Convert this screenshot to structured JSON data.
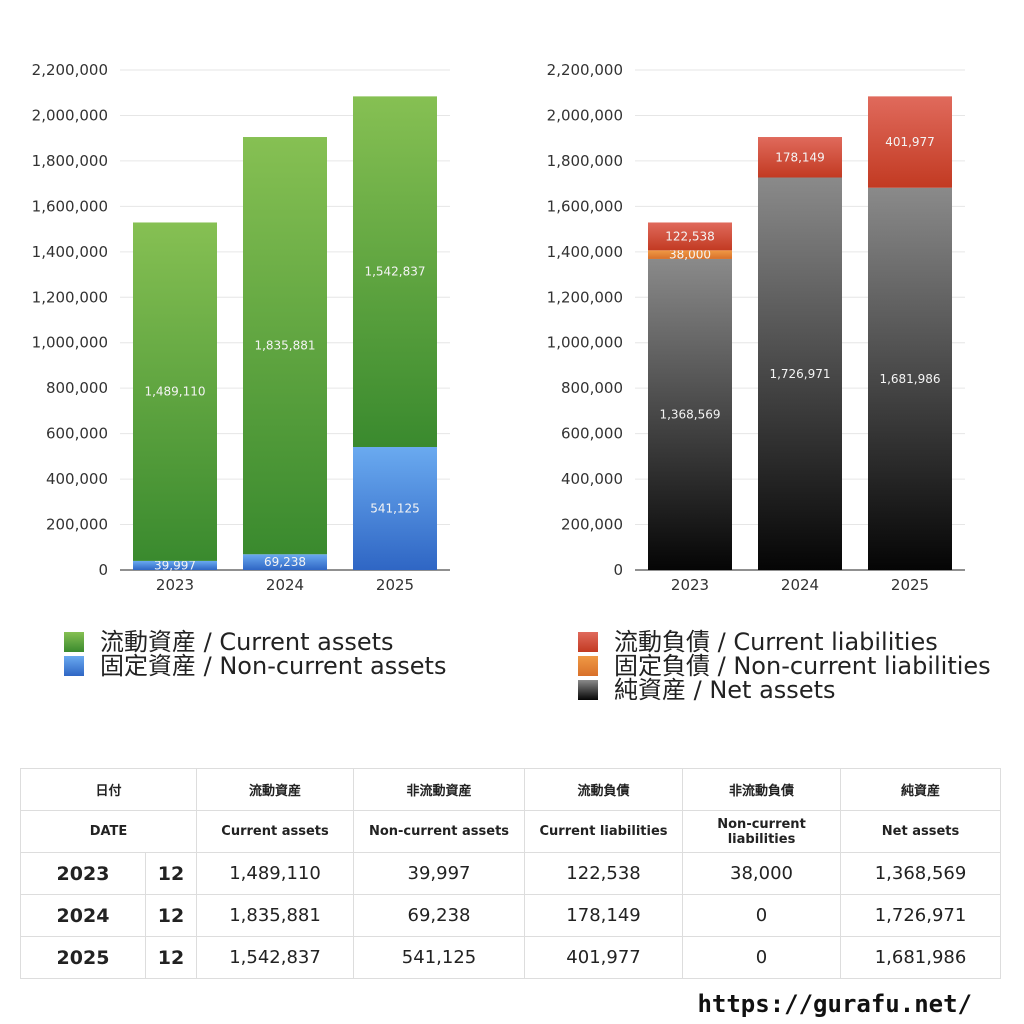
{
  "chart_data": [
    {
      "type": "bar",
      "stacked": true,
      "categories": [
        "2023",
        "2024",
        "2025"
      ],
      "ylim": [
        0,
        2200000
      ],
      "yticks": [
        "0",
        "200,000",
        "400,000",
        "600,000",
        "800,000",
        "1,000,000",
        "1,200,000",
        "1,400,000",
        "1,600,000",
        "1,800,000",
        "2,000,000",
        "2,200,000"
      ],
      "grid": true,
      "legend_position": "bottom",
      "series": [
        {
          "name": "固定資産 / Non-current assets",
          "values": [
            39997,
            69238,
            541125
          ],
          "labels": [
            "39,997",
            "69,238",
            "541,125"
          ],
          "color_top": "#6aaaf0",
          "color_bottom": "#2f66c4"
        },
        {
          "name": "流動資産 / Current assets",
          "values": [
            1489110,
            1835881,
            1542837
          ],
          "labels": [
            "1,489,110",
            "1,835,881",
            "1,542,837"
          ],
          "color_top": "#86c053",
          "color_bottom": "#3a8a2e"
        }
      ]
    },
    {
      "type": "bar",
      "stacked": true,
      "categories": [
        "2023",
        "2024",
        "2025"
      ],
      "ylim": [
        0,
        2200000
      ],
      "yticks": [
        "0",
        "200,000",
        "400,000",
        "600,000",
        "800,000",
        "1,000,000",
        "1,200,000",
        "1,400,000",
        "1,600,000",
        "1,800,000",
        "2,000,000",
        "2,200,000"
      ],
      "grid": true,
      "legend_position": "bottom",
      "series": [
        {
          "name": "純資産 / Net assets",
          "values": [
            1368569,
            1726971,
            1681986
          ],
          "labels": [
            "1,368,569",
            "1,726,971",
            "1,681,986"
          ],
          "color_top": "#8a8a8a",
          "color_bottom": "#050505"
        },
        {
          "name": "固定負債 / Non-current liabilities",
          "values": [
            38000,
            0,
            0
          ],
          "labels": [
            "38,000",
            "",
            ""
          ],
          "color_top": "#f09a45",
          "color_bottom": "#d8702a"
        },
        {
          "name": "流動負債 / Current liabilities",
          "values": [
            122538,
            178149,
            401977
          ],
          "labels": [
            "122,538",
            "178,149",
            "401,977"
          ],
          "color_top": "#e06a5c",
          "color_bottom": "#c23a22"
        }
      ]
    }
  ],
  "legend_assets": [
    {
      "label": "流動資産 / Current assets",
      "color": "#58a83c"
    },
    {
      "label": "固定資産 / Non-current assets",
      "color": "#3f7fd8"
    }
  ],
  "legend_liab": [
    {
      "label": "流動負債 / Current liabilities",
      "color": "#d2483a"
    },
    {
      "label": "固定負債 / Non-current liabilities",
      "color": "#e58a3a"
    },
    {
      "label": "純資産 / Net assets",
      "color": "#333333"
    }
  ],
  "table": {
    "headers_jp": [
      "日付",
      "流動資産",
      "非流動資産",
      "流動負債",
      "非流動負債",
      "純資産"
    ],
    "headers_en": [
      "DATE",
      "Current assets",
      "Non-current assets",
      "Current liabilities",
      "Non-current liabilities",
      "Net assets"
    ],
    "rows": [
      [
        "2023",
        "12",
        "1,489,110",
        "39,997",
        "122,538",
        "38,000",
        "1,368,569"
      ],
      [
        "2024",
        "12",
        "1,835,881",
        "69,238",
        "178,149",
        "0",
        "1,726,971"
      ],
      [
        "2025",
        "12",
        "1,542,837",
        "541,125",
        "401,977",
        "0",
        "1,681,986"
      ]
    ]
  },
  "footer": "https://gurafu.net/"
}
